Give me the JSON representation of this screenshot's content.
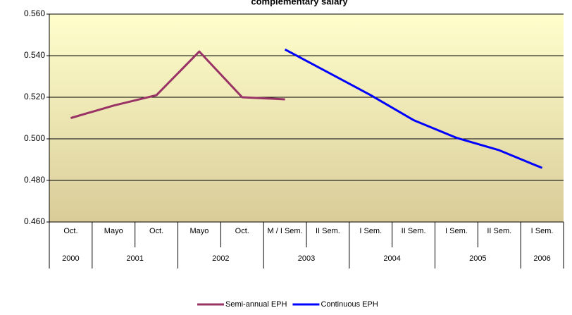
{
  "chart_data": {
    "type": "line",
    "title": "complementary salary",
    "categories": [
      "Oct.",
      "Mayo",
      "Oct.",
      "Mayo",
      "Oct.",
      "M / I Sem.",
      "II Sem.",
      "I Sem.",
      "II Sem.",
      "I Sem.",
      "II Sem.",
      "I Sem."
    ],
    "groups": [
      {
        "label": "2000",
        "span": 1
      },
      {
        "label": "2001",
        "span": 2
      },
      {
        "label": "2002",
        "span": 2
      },
      {
        "label": "2003",
        "span": 2
      },
      {
        "label": "2004",
        "span": 2
      },
      {
        "label": "2005",
        "span": 2
      },
      {
        "label": "2006",
        "span": 1
      }
    ],
    "series": [
      {
        "name": "Semi-annual EPH",
        "color": "#993366",
        "values": [
          0.51,
          0.516,
          0.521,
          0.542,
          0.52,
          0.519,
          null,
          null,
          null,
          null,
          null,
          null
        ]
      },
      {
        "name": "Continuous EPH",
        "color": "#0000ff",
        "values": [
          null,
          null,
          null,
          null,
          null,
          0.543,
          0.532,
          0.521,
          0.509,
          0.5005,
          0.4945,
          0.486
        ]
      }
    ],
    "ylim": [
      0.46,
      0.56
    ],
    "yticks": [
      {
        "value": 0.46,
        "label": "0.460"
      },
      {
        "value": 0.48,
        "label": "0.480"
      },
      {
        "value": 0.5,
        "label": "0.500"
      },
      {
        "value": 0.52,
        "label": "0.520"
      },
      {
        "value": 0.54,
        "label": "0.540"
      },
      {
        "value": 0.56,
        "label": "0.560"
      }
    ],
    "grid": true,
    "legend": "bottom"
  }
}
